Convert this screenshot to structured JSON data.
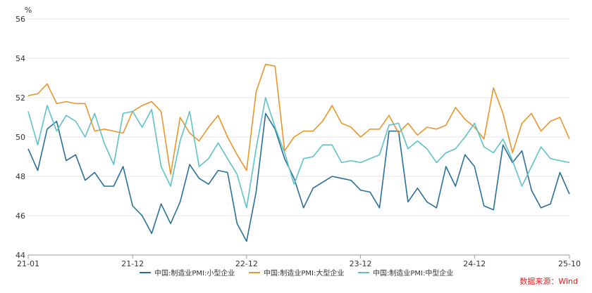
{
  "chart_data": {
    "type": "line",
    "title": "",
    "ylabel": "%",
    "ylim": [
      44,
      56
    ],
    "yticks": [
      44,
      46,
      48,
      50,
      52,
      54,
      56
    ],
    "x_range": [
      0,
      57
    ],
    "xticks": [
      {
        "label": "21-01",
        "index": 0
      },
      {
        "label": "21-12",
        "index": 11
      },
      {
        "label": "22-12",
        "index": 23
      },
      {
        "label": "23-12",
        "index": 35
      },
      {
        "label": "24-12",
        "index": 47
      },
      {
        "label": "25-10",
        "index": 57
      }
    ],
    "grid": "horizontal",
    "legend_position": "bottom",
    "series": [
      {
        "name": "中国:制造业PMI:小型企业",
        "color": "#2a6f97",
        "values": [
          49.4,
          48.3,
          50.4,
          50.8,
          48.8,
          49.1,
          47.8,
          48.2,
          47.5,
          47.5,
          48.5,
          46.5,
          46.0,
          45.1,
          46.6,
          45.6,
          46.7,
          48.6,
          47.9,
          47.6,
          48.3,
          48.2,
          45.6,
          44.7,
          47.2,
          51.2,
          50.4,
          48.9,
          47.9,
          46.4,
          47.4,
          47.7,
          48.0,
          47.9,
          47.8,
          47.3,
          47.2,
          46.4,
          50.3,
          50.3,
          46.7,
          47.4,
          46.7,
          46.4,
          48.5,
          47.5,
          49.1,
          48.5,
          46.5,
          46.3,
          49.6,
          48.7,
          49.3,
          47.3,
          46.4,
          46.6,
          48.2,
          47.1
        ]
      },
      {
        "name": "中国:制造业PMI:大型企业",
        "color": "#e8952c",
        "values": [
          52.1,
          52.2,
          52.7,
          51.7,
          51.8,
          51.7,
          51.7,
          50.3,
          50.4,
          50.3,
          50.2,
          51.3,
          51.6,
          51.8,
          51.3,
          48.1,
          51.0,
          50.2,
          49.8,
          50.5,
          51.1,
          50.0,
          49.1,
          48.3,
          52.3,
          53.7,
          53.6,
          49.3,
          50.0,
          50.3,
          50.3,
          50.8,
          51.6,
          50.7,
          50.5,
          50.0,
          50.4,
          50.4,
          51.1,
          50.2,
          50.7,
          50.1,
          50.5,
          50.4,
          50.6,
          51.5,
          50.9,
          50.5,
          49.9,
          52.5,
          51.2,
          49.2,
          50.7,
          51.2,
          50.3,
          50.8,
          51.0,
          49.9
        ]
      },
      {
        "name": "中国:制造业PMI:中型企业",
        "color": "#5ec2c7",
        "values": [
          51.3,
          49.6,
          51.6,
          50.3,
          51.1,
          50.8,
          50.0,
          51.2,
          49.7,
          48.6,
          51.2,
          51.3,
          50.5,
          51.4,
          48.5,
          47.5,
          49.8,
          51.3,
          48.5,
          48.9,
          49.7,
          48.9,
          48.1,
          46.4,
          49.4,
          52.0,
          50.5,
          49.2,
          47.6,
          48.9,
          49.0,
          49.6,
          49.6,
          48.7,
          48.8,
          48.7,
          48.9,
          49.1,
          50.6,
          50.7,
          49.4,
          49.8,
          49.4,
          48.7,
          49.2,
          49.4,
          50.0,
          50.7,
          49.5,
          49.2,
          49.9,
          48.8,
          47.5,
          48.5,
          49.5,
          48.9,
          48.8,
          48.7
        ]
      }
    ]
  },
  "source": "数据来源：Wind"
}
